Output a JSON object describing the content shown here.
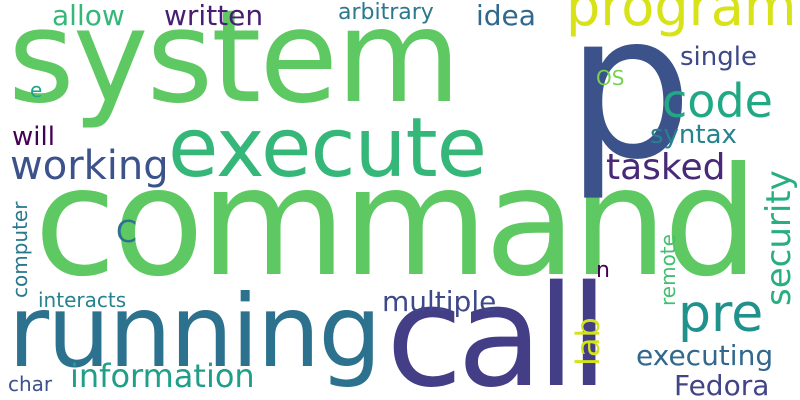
{
  "words": [
    {
      "id": "system",
      "text": "system",
      "color": "#5ec962"
    },
    {
      "id": "command",
      "text": "command",
      "color": "#5ec962"
    },
    {
      "id": "p",
      "text": "p",
      "color": "#3b528b"
    },
    {
      "id": "call",
      "text": "call",
      "color": "#433e85"
    },
    {
      "id": "running",
      "text": "running",
      "color": "#2c728e"
    },
    {
      "id": "execute",
      "text": "execute",
      "color": "#35b779"
    },
    {
      "id": "program",
      "text": "program",
      "color": "#d8e219"
    },
    {
      "id": "code",
      "text": "code",
      "color": "#22a884"
    },
    {
      "id": "pre",
      "text": "pre",
      "color": "#21918c"
    },
    {
      "id": "working",
      "text": "working",
      "color": "#3b528b"
    },
    {
      "id": "information",
      "text": "information",
      "color": "#1f9e89"
    },
    {
      "id": "security",
      "text": "security",
      "color": "#29af7f"
    },
    {
      "id": "tasked",
      "text": "tasked",
      "color": "#482878"
    },
    {
      "id": "executing",
      "text": "executing",
      "color": "#31688e"
    },
    {
      "id": "multiple",
      "text": "multiple",
      "color": "#3e4989"
    },
    {
      "id": "lab",
      "text": "lab",
      "color": "#d2e21b"
    },
    {
      "id": "fedora",
      "text": "Fedora",
      "color": "#414487"
    },
    {
      "id": "allow",
      "text": "allow",
      "color": "#35b779"
    },
    {
      "id": "written",
      "text": "written",
      "color": "#481f70"
    },
    {
      "id": "idea",
      "text": "idea",
      "color": "#31688e"
    },
    {
      "id": "arbitrary",
      "text": "arbitrary",
      "color": "#2a788e"
    },
    {
      "id": "single",
      "text": "single",
      "color": "#3e4989"
    },
    {
      "id": "syntax",
      "text": "syntax",
      "color": "#26828e"
    },
    {
      "id": "will",
      "text": "will",
      "color": "#440154"
    },
    {
      "id": "c",
      "text": "C",
      "color": "#2c728e"
    },
    {
      "id": "os",
      "text": "OS",
      "color": "#7ad151"
    },
    {
      "id": "e",
      "text": "e",
      "color": "#20a486"
    },
    {
      "id": "n",
      "text": "n",
      "color": "#440154"
    },
    {
      "id": "computer",
      "text": "computer",
      "color": "#2a788e"
    },
    {
      "id": "interacts",
      "text": "interacts",
      "color": "#26828e"
    },
    {
      "id": "remote",
      "text": "remote",
      "color": "#44bf70"
    },
    {
      "id": "char",
      "text": "char",
      "color": "#3b528b"
    }
  ]
}
